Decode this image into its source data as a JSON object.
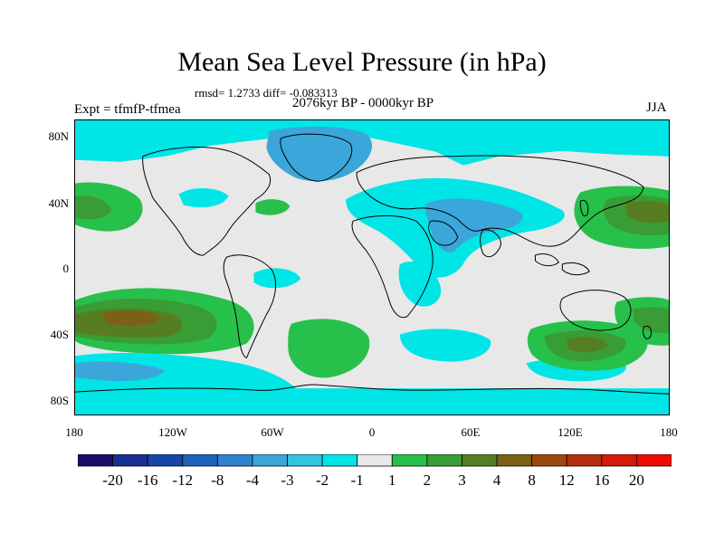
{
  "title": "Mean Sea Level Pressure (in hPa)",
  "stats": "rmsd= 1.2733 diff= -0.083313",
  "period": "2076kyr BP - 0000kyr BP",
  "experiment": "Expt = tfmfP-tfmea",
  "season": "JJA",
  "latitude_ticks": [
    "80N",
    "40N",
    "0",
    "40S",
    "80S"
  ],
  "longitude_ticks": [
    "180",
    "120W",
    "60W",
    "0",
    "60E",
    "120E",
    "180"
  ],
  "colorbar": {
    "labels": [
      "-20",
      "-16",
      "-12",
      "-8",
      "-4",
      "-3",
      "-2",
      "-1",
      "1",
      "2",
      "3",
      "4",
      "8",
      "12",
      "16",
      "20"
    ],
    "colors": [
      "#1b0f6b",
      "#162f92",
      "#1646a8",
      "#1f62bd",
      "#2f82cf",
      "#3ba6da",
      "#34c4e0",
      "#00e5e5",
      "#e8e8e8",
      "#27c04a",
      "#3a9c34",
      "#577d23",
      "#7a6116",
      "#9c4710",
      "#b4300c",
      "#d21b08",
      "#ee0b04"
    ]
  },
  "legend_colors": {
    "land_background": "#e8e8e8",
    "negative_1": "#00e5e5",
    "negative_2": "#34c4e0",
    "negative_3": "#3ba6da",
    "positive_1": "#27c04a",
    "positive_2": "#3a9c34",
    "positive_3": "#577d23",
    "positive_4": "#7a6116"
  }
}
